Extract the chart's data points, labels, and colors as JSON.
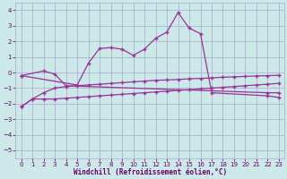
{
  "xlabel": "Windchill (Refroidissement éolien,°C)",
  "bg_color": "#cce8e8",
  "grid_color": "#aaaacc",
  "line_color": "#993399",
  "ylim": [
    -5.5,
    4.5
  ],
  "xlim": [
    -0.5,
    23.5
  ],
  "yticks": [
    -5,
    -4,
    -3,
    -2,
    -1,
    0,
    1,
    2,
    3,
    4
  ],
  "xticks": [
    0,
    1,
    2,
    3,
    4,
    5,
    6,
    7,
    8,
    9,
    10,
    11,
    12,
    13,
    14,
    15,
    16,
    17,
    18,
    19,
    20,
    21,
    22,
    23
  ],
  "line1_x": [
    0,
    2,
    3,
    4,
    22,
    23
  ],
  "line1_y": [
    -0.2,
    0.1,
    -0.1,
    -0.85,
    -1.3,
    -1.3
  ],
  "line2_x": [
    0,
    5,
    6,
    7,
    8,
    9,
    10,
    11,
    12,
    13,
    14,
    15,
    16,
    17,
    22,
    23
  ],
  "line2_y": [
    -0.2,
    -0.8,
    0.6,
    1.55,
    1.6,
    1.5,
    1.1,
    1.5,
    2.2,
    2.6,
    3.85,
    2.85,
    2.5,
    -1.3,
    -1.5,
    -1.6
  ],
  "line3_x": [
    0,
    1,
    2,
    3,
    4,
    5,
    6,
    7,
    8,
    9,
    10,
    11,
    12,
    13,
    14,
    15,
    16,
    17,
    18,
    19,
    20,
    21,
    22,
    23
  ],
  "line3_y": [
    -2.2,
    -1.7,
    -1.3,
    -1.0,
    -0.9,
    -0.85,
    -0.8,
    -0.75,
    -0.7,
    -0.65,
    -0.6,
    -0.55,
    -0.5,
    -0.48,
    -0.45,
    -0.4,
    -0.38,
    -0.35,
    -0.3,
    -0.28,
    -0.25,
    -0.22,
    -0.2,
    -0.18
  ],
  "line4_x": [
    0,
    1,
    2,
    3,
    4,
    5,
    6,
    7,
    8,
    9,
    10,
    11,
    12,
    13,
    14,
    15,
    16,
    17,
    18,
    19,
    20,
    21,
    22,
    23
  ],
  "line4_y": [
    -2.2,
    -1.7,
    -1.7,
    -1.7,
    -1.65,
    -1.6,
    -1.55,
    -1.5,
    -1.45,
    -1.4,
    -1.35,
    -1.3,
    -1.25,
    -1.2,
    -1.15,
    -1.1,
    -1.05,
    -1.0,
    -0.95,
    -0.9,
    -0.85,
    -0.8,
    -0.75,
    -0.7
  ]
}
